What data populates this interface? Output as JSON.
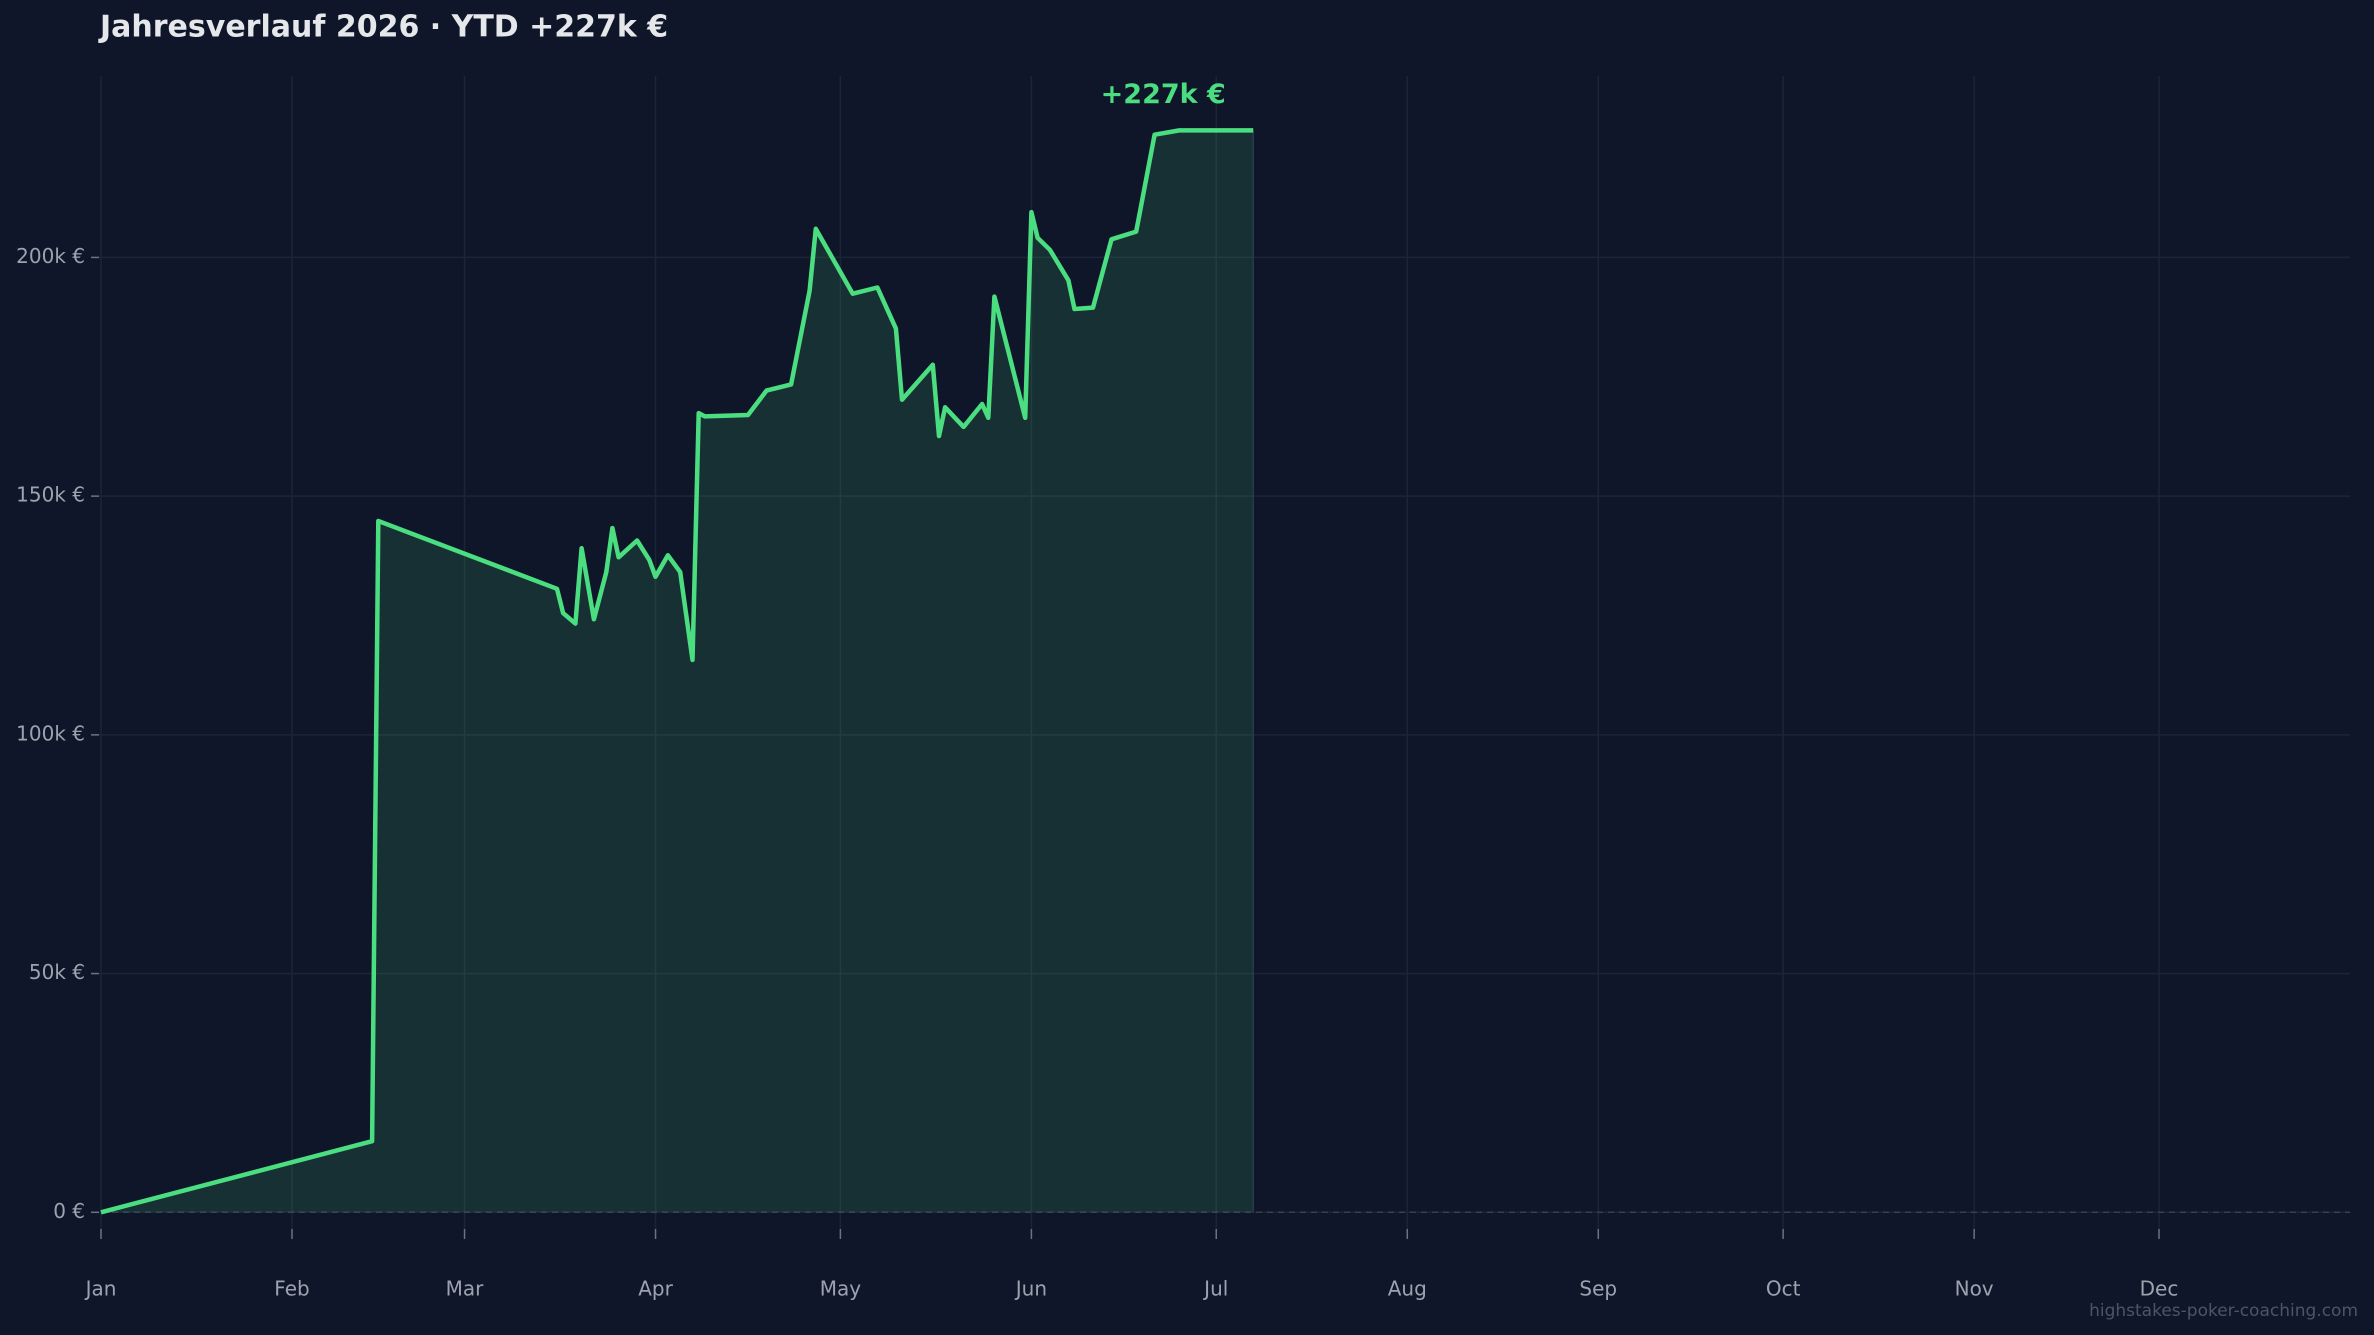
{
  "chart_data": {
    "type": "area-line",
    "title": "Jahresverlauf 2026  ·  YTD +227k €",
    "annotation": "+227k €",
    "watermark": "highstakes-poker-coaching.com",
    "x": [
      0,
      44,
      45,
      74,
      75,
      77,
      78,
      80,
      82,
      83,
      84,
      87,
      89,
      90,
      92,
      94,
      96,
      97,
      98,
      105,
      108,
      112,
      115,
      116,
      122,
      126,
      129,
      130,
      135,
      136,
      137,
      140,
      143,
      144,
      145,
      150,
      151,
      152,
      154,
      157,
      158,
      161,
      164,
      168,
      171,
      175,
      187
    ],
    "values": [
      0,
      14900,
      144800,
      130600,
      125500,
      123300,
      139100,
      124200,
      134100,
      143300,
      137200,
      140700,
      136600,
      133100,
      137600,
      134100,
      115700,
      167400,
      166700,
      167000,
      172100,
      173400,
      193000,
      206000,
      192400,
      193700,
      185100,
      170200,
      177500,
      162600,
      168600,
      164500,
      169300,
      166400,
      191800,
      166400,
      209500,
      204100,
      201600,
      195200,
      189200,
      189500,
      203800,
      205400,
      225700,
      226600,
      226600
    ],
    "color": "#4ade80",
    "xlim": [
      0,
      365
    ],
    "xticks": [
      {
        "value": 0,
        "label": "Jan"
      },
      {
        "value": 31,
        "label": "Feb"
      },
      {
        "value": 59,
        "label": "Mar"
      },
      {
        "value": 90,
        "label": "Apr"
      },
      {
        "value": 120,
        "label": "May"
      },
      {
        "value": 151,
        "label": "Jun"
      },
      {
        "value": 181,
        "label": "Jul"
      },
      {
        "value": 212,
        "label": "Aug"
      },
      {
        "value": 243,
        "label": "Sep"
      },
      {
        "value": 273,
        "label": "Oct"
      },
      {
        "value": 304,
        "label": "Nov"
      },
      {
        "value": 334,
        "label": "Dec"
      }
    ],
    "ylim": [
      -3500,
      238000
    ],
    "yticks": [
      {
        "value": 0,
        "label": "0 €"
      },
      {
        "value": 50000,
        "label": "50k €"
      },
      {
        "value": 100000,
        "label": "100k €"
      },
      {
        "value": 150000,
        "label": "150k €"
      },
      {
        "value": 200000,
        "label": "200k €"
      }
    ],
    "grid": true
  }
}
